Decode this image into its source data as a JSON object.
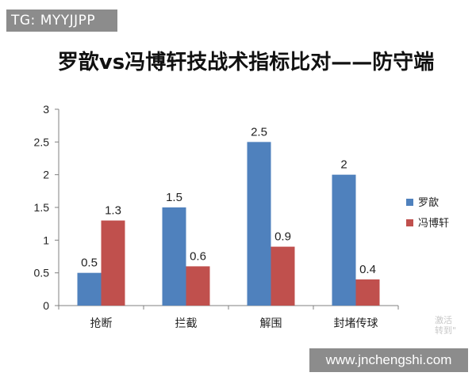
{
  "watermark_tag": "TG: MYYJJPP",
  "watermark_corner": [
    "激活",
    "转到\""
  ],
  "site_banner": "www.jnchengshi.com",
  "colors": {
    "series1": "#4F81BD",
    "series2": "#C0504D",
    "axis": "#808080"
  },
  "chart_data": {
    "type": "bar",
    "title": "罗歆vs冯博轩技战术指标比对——防守端",
    "categories": [
      "抢断",
      "拦截",
      "解围",
      "封堵传球"
    ],
    "series": [
      {
        "name": "罗歆",
        "values": [
          0.5,
          1.5,
          2.5,
          2
        ]
      },
      {
        "name": "冯博轩",
        "values": [
          1.3,
          0.6,
          0.9,
          0.4
        ]
      }
    ],
    "data_labels": [
      [
        "0.5",
        "1.5",
        "2.5",
        "2"
      ],
      [
        "1.3",
        "0.6",
        "0.9",
        "0.4"
      ]
    ],
    "ylim": [
      0,
      3
    ],
    "yticks": [
      "0",
      "0.5",
      "1",
      "1.5",
      "2",
      "2.5",
      "3"
    ],
    "xlabel": "",
    "ylabel": "",
    "grid": false,
    "legend": "right"
  }
}
